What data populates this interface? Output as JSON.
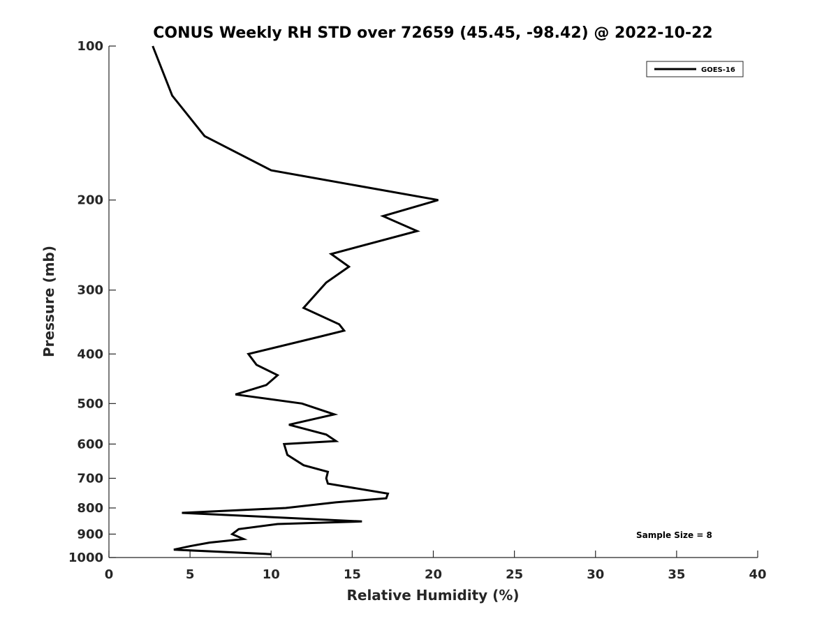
{
  "chart_data": {
    "type": "line",
    "title": "CONUS Weekly RH STD over 72659 (45.45, -98.42) @ 2022-10-22",
    "xlabel": "Relative Humidity (%)",
    "ylabel": "Pressure (mb)",
    "xlim": [
      0,
      40
    ],
    "ylim": [
      100,
      1000
    ],
    "yscale": "log",
    "yreversed": true,
    "grid": false,
    "legend_position": "top-right",
    "xticks": [
      0,
      5,
      10,
      15,
      20,
      25,
      30,
      35,
      40
    ],
    "xtick_labels": [
      "0",
      "5",
      "10",
      "15",
      "20",
      "25",
      "30",
      "35",
      "40"
    ],
    "yticks": [
      100,
      200,
      300,
      400,
      500,
      600,
      700,
      800,
      900,
      1000
    ],
    "ytick_labels": [
      "100",
      "200",
      "300",
      "400",
      "500",
      "600",
      "700",
      "800",
      "900",
      "1000"
    ],
    "series": [
      {
        "name": "GOES-16",
        "color": "#000000",
        "x": [
          2.7,
          3.9,
          5.9,
          10.0,
          20.3,
          16.9,
          19.0,
          13.7,
          14.8,
          13.4,
          12.0,
          14.2,
          14.5,
          13.0,
          8.6,
          9.1,
          10.4,
          9.7,
          7.8,
          11.9,
          13.9,
          11.1,
          13.4,
          14.0,
          10.8,
          11.0,
          12.0,
          13.5,
          13.4,
          13.5,
          17.2,
          17.1,
          14.0,
          10.9,
          4.5,
          15.6,
          10.4,
          8.0,
          7.6,
          8.3,
          6.2,
          5.0,
          4.0,
          10.0
        ],
        "y": [
          100,
          125,
          150,
          175,
          200,
          215,
          230,
          255,
          270,
          290,
          325,
          350,
          360,
          370,
          400,
          420,
          440,
          460,
          480,
          500,
          525,
          550,
          575,
          592,
          600,
          630,
          660,
          680,
          700,
          717,
          750,
          766,
          780,
          800,
          818,
          850,
          860,
          880,
          900,
          920,
          935,
          950,
          965,
          985
        ]
      }
    ],
    "legend": [
      "GOES-16"
    ],
    "annotations": [
      "Sample Size = 8"
    ]
  }
}
